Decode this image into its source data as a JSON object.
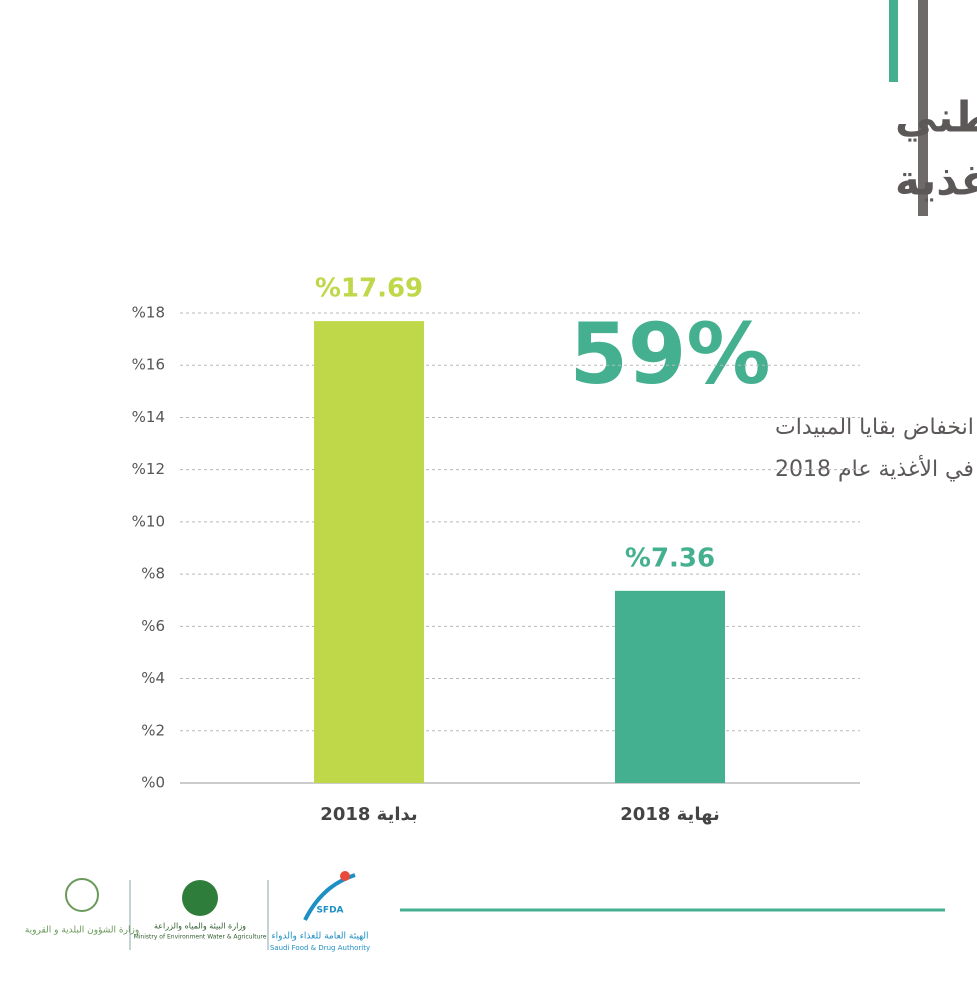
{
  "chart_data": {
    "type": "bar",
    "title": [
      "نتائج البرنامج الوطني",
      "لرصد بقايا المبيدات في الأغذية"
    ],
    "categories": [
      "بداية 2018",
      "نهاية 2018"
    ],
    "values": [
      17.69,
      7.36
    ],
    "value_labels": [
      "%17.69",
      "%7.36"
    ],
    "colors": [
      "#bfd84a",
      "#45b08f"
    ],
    "ylim": [
      0,
      18
    ],
    "yticks": [
      {
        "value": 0,
        "label": "%0"
      },
      {
        "value": 2,
        "label": "%2"
      },
      {
        "value": 4,
        "label": "%4"
      },
      {
        "value": 6,
        "label": "%6"
      },
      {
        "value": 8,
        "label": "%8"
      },
      {
        "value": 10,
        "label": "%10"
      },
      {
        "value": 12,
        "label": "%12"
      },
      {
        "value": 14,
        "label": "%14"
      },
      {
        "value": 16,
        "label": "%16"
      },
      {
        "value": 18,
        "label": "%18"
      }
    ],
    "grid": true,
    "annotation": {
      "value": "59%",
      "text": [
        "نسبة انخفاض بقايا المبيدات",
        "في الأغذية عام 2018"
      ]
    }
  },
  "footer": {
    "logos": [
      "وزارة الشؤون البلدية و القروية",
      "وزارة البيئة والمياه والزراعة",
      "Ministry of Environment Water & Agriculture",
      "SFDA",
      "الهيئة العامة للغذاء والدواء",
      "Saudi Food & Drug Authority"
    ]
  }
}
